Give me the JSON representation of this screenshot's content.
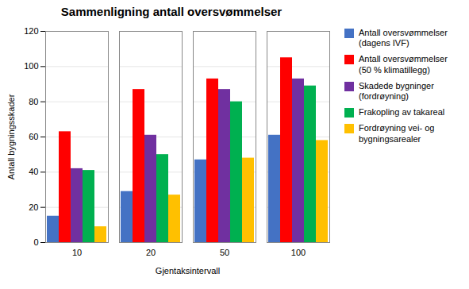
{
  "chart_data": {
    "type": "bar",
    "title": "Sammenligning antall oversvømmelser",
    "xlabel": "Gjentaksintervall",
    "ylabel": "Antall bygningsskader",
    "categories": [
      "10",
      "20",
      "50",
      "100"
    ],
    "series": [
      {
        "name": "Antall oversvømmelser\n(dagens IVF)",
        "color": "#4472C4",
        "values": [
          15,
          29,
          47,
          61
        ]
      },
      {
        "name": "Antall oversvømmelser\n(50 % klimatillegg)",
        "color": "#FF0000",
        "values": [
          63,
          87,
          93,
          105
        ]
      },
      {
        "name": "Skadede bygninger\n(fordrøyning)",
        "color": "#7030A0",
        "values": [
          42,
          61,
          87,
          93
        ]
      },
      {
        "name": "Frakopling av takareal",
        "color": "#00B050",
        "values": [
          41,
          50,
          80,
          89
        ]
      },
      {
        "name": "Fordrøyning vei- og\nbygningsarealer",
        "color": "#FFC000",
        "values": [
          9,
          27,
          48,
          58
        ]
      }
    ],
    "ylim": [
      0,
      120
    ],
    "yticks": [
      0,
      20,
      40,
      60,
      80,
      100,
      120
    ],
    "grid": true,
    "legend": "right"
  }
}
